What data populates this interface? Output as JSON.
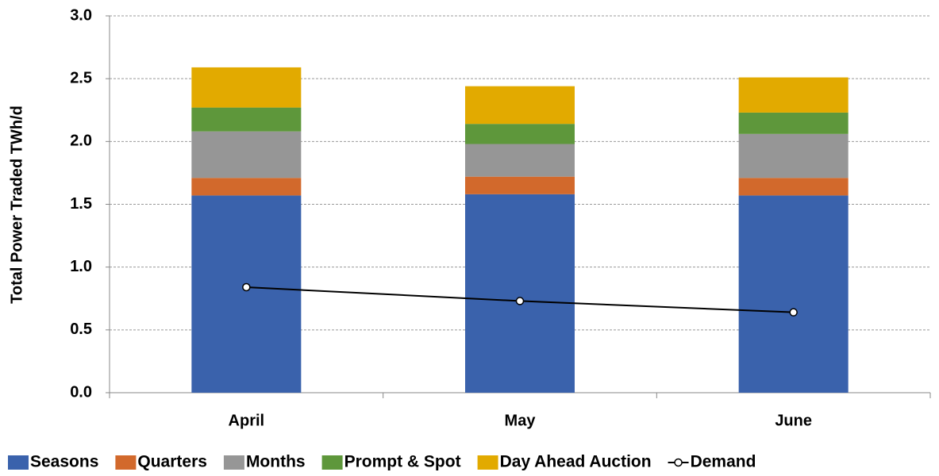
{
  "chart_data": {
    "type": "bar",
    "y_label": "Total Power Traded TWh/d",
    "categories": [
      "April",
      "May",
      "June"
    ],
    "series": [
      {
        "name": "Seasons",
        "color": "#3a62ac",
        "values": [
          1.57,
          1.58,
          1.57
        ]
      },
      {
        "name": "Quarters",
        "color": "#d2692c",
        "values": [
          0.14,
          0.14,
          0.14
        ]
      },
      {
        "name": "Months",
        "color": "#969696",
        "values": [
          0.37,
          0.26,
          0.35
        ]
      },
      {
        "name": "Prompt & Spot",
        "color": "#5e973b",
        "values": [
          0.19,
          0.16,
          0.17
        ]
      },
      {
        "name": "Day Ahead Auction",
        "color": "#e2aa00",
        "values": [
          0.32,
          0.3,
          0.28
        ]
      },
      {
        "name": "Demand",
        "type": "line",
        "color": "#000000",
        "values": [
          0.84,
          0.73,
          0.64
        ]
      }
    ],
    "ylim": [
      0,
      3
    ],
    "yticks": [
      {
        "value": 0,
        "label": "0.0"
      },
      0.5,
      {
        "value": 1,
        "label": "1.0"
      },
      1.5,
      {
        "value": 2,
        "label": "2.0"
      },
      2.5,
      {
        "value": 3,
        "label": "3.0"
      }
    ],
    "grid": true,
    "legend": "bottom"
  }
}
